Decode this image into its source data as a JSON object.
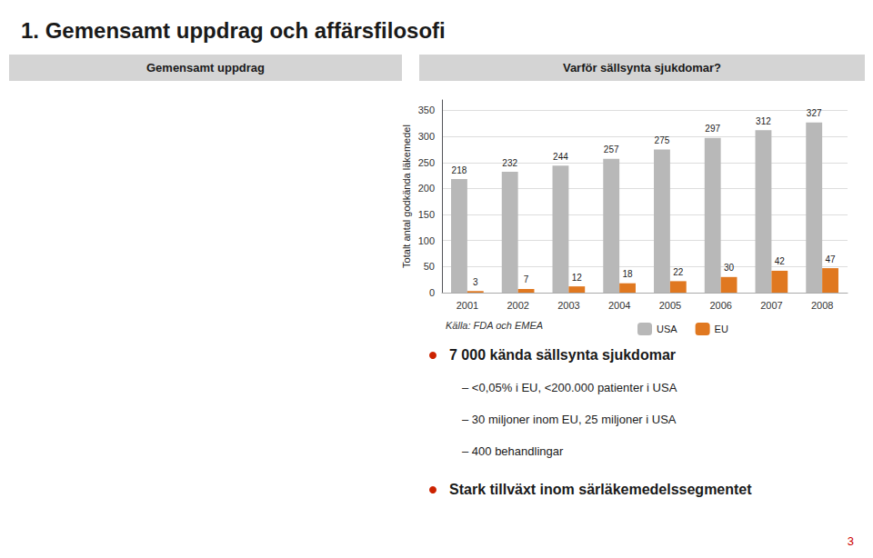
{
  "chart_data": {
    "type": "bar",
    "title": "1. Gemensamt uppdrag och affärsfilosofi",
    "categories": [
      "2001",
      "2002",
      "2003",
      "2004",
      "2005",
      "2006",
      "2007",
      "2008"
    ],
    "series": [
      {
        "name": "USA",
        "color": "#b8b8b8",
        "values": [
          218,
          232,
          244,
          257,
          275,
          297,
          312,
          327
        ]
      },
      {
        "name": "EU",
        "color": "#e07820",
        "values": [
          3,
          7,
          12,
          18,
          22,
          30,
          42,
          47
        ]
      }
    ],
    "ylabel": "Totalt antal godkända läkemedel",
    "ylim": [
      0,
      370
    ],
    "yticks": [
      0,
      50,
      100,
      150,
      200,
      250,
      300,
      350
    ],
    "grid": true,
    "data_labels": true,
    "legend": "bottom",
    "annotations": [
      "Gemensamt uppdrag",
      "Varför sällsynta sjukdomar?",
      "Källa: FDA och EMEA",
      "7 000 kända sällsynta sjukdomar",
      "– <0,05% i EU, <200.000 patienter i USA",
      "– 30 miljoner inom EU, 25 miljoner i USA",
      "– 400 behandlingar",
      "Stark tillväxt inom särläkemedelssegmentet",
      "3"
    ]
  }
}
